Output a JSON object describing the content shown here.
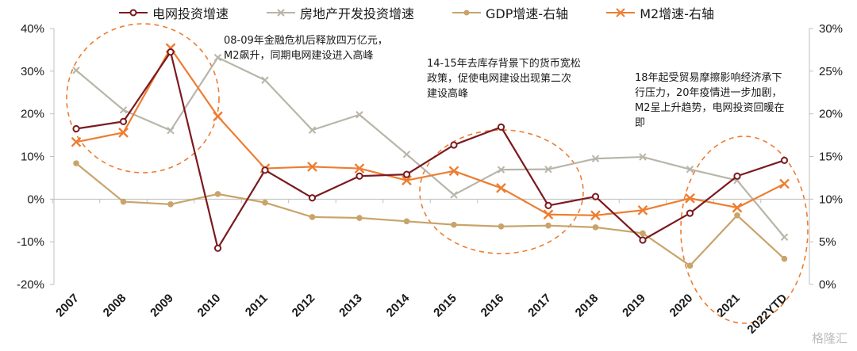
{
  "chart_data": {
    "type": "line",
    "categories": [
      "2007",
      "2008",
      "2009",
      "2010",
      "2011",
      "2012",
      "2013",
      "2014",
      "2015",
      "2016",
      "2017",
      "2018",
      "2019",
      "2020",
      "2021",
      "2022YTD"
    ],
    "series": [
      {
        "name": "电网投资增速",
        "axis": "left",
        "color": "#7b1a1f",
        "marker": "circle",
        "values": [
          16.5,
          18.2,
          34.5,
          -11.5,
          6.8,
          0.3,
          5.4,
          5.8,
          12.7,
          16.9,
          -1.5,
          0.6,
          -9.6,
          -3.3,
          5.4,
          9.1
        ]
      },
      {
        "name": "房地产开发投资增速",
        "axis": "left",
        "color": "#b8b5a9",
        "marker": "x",
        "values": [
          30.2,
          20.9,
          16.1,
          33.2,
          27.9,
          16.2,
          19.8,
          10.5,
          1.0,
          6.9,
          7.0,
          9.5,
          9.9,
          7.0,
          4.4,
          -8.9
        ]
      },
      {
        "name": "GDP增速-右轴",
        "axis": "right",
        "color": "#c8a46a",
        "marker": "circle",
        "values": [
          14.2,
          9.7,
          9.4,
          10.6,
          9.6,
          7.9,
          7.8,
          7.4,
          7.0,
          6.8,
          6.9,
          6.7,
          6.0,
          2.2,
          8.1,
          3.0
        ]
      },
      {
        "name": "M2增速-右轴",
        "axis": "right",
        "color": "#ed7d31",
        "marker": "x",
        "values": [
          16.7,
          17.8,
          27.7,
          19.7,
          13.6,
          13.8,
          13.6,
          12.2,
          13.3,
          11.3,
          8.2,
          8.1,
          8.7,
          10.1,
          9.0,
          11.8
        ]
      }
    ],
    "ylim_left": [
      -20,
      40
    ],
    "yticks_left": [
      "40%",
      "30%",
      "20%",
      "10%",
      "0%",
      "-10%",
      "-20%"
    ],
    "ylim_right": [
      0,
      30
    ],
    "yticks_right": [
      "30%",
      "25%",
      "20%",
      "15%",
      "10%",
      "5%",
      "0%"
    ],
    "legend_position": "top",
    "grid": false
  },
  "annotations": [
    {
      "text": "08-09年金融危机后释放四万亿元，\nM2飙升，同期电网建设进入高峰"
    },
    {
      "text": "14-15年去库存背景下的货币宽松\n政策，促使电网建设出现第二次\n建设高峰"
    },
    {
      "text": "18年起受贸易摩擦影响经济承下\n行压力，20年疫情进一步加剧，\nM2呈上升趋势，电网投资回暖在\n即"
    }
  ],
  "watermark": "格隆汇"
}
